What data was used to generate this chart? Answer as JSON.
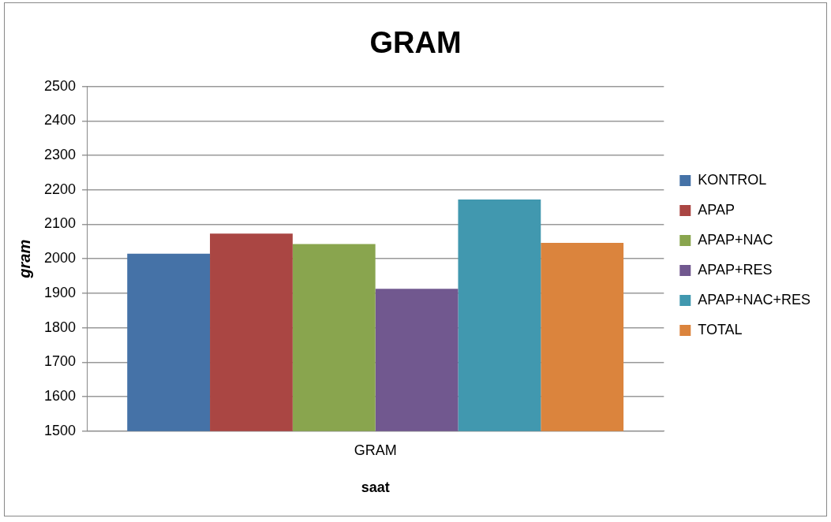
{
  "chart_data": {
    "type": "bar",
    "title": "GRAM",
    "xlabel": "saat",
    "ylabel": "gram",
    "categories": [
      "GRAM"
    ],
    "series": [
      {
        "name": "KONTROL",
        "color": "#4572a7",
        "values": [
          2015
        ]
      },
      {
        "name": "APAP",
        "color": "#aa4643",
        "values": [
          2073
        ]
      },
      {
        "name": "APAP+NAC",
        "color": "#89a54e",
        "values": [
          2043
        ]
      },
      {
        "name": "APAP+RES",
        "color": "#71588f",
        "values": [
          1913
        ]
      },
      {
        "name": "APAP+NAC+RES",
        "color": "#4198af",
        "values": [
          2172
        ]
      },
      {
        "name": "TOTAL",
        "color": "#db843d",
        "values": [
          2046
        ]
      }
    ],
    "ylim": [
      1500,
      2500
    ],
    "yticks": [
      1500,
      1600,
      1700,
      1800,
      1900,
      2000,
      2100,
      2200,
      2300,
      2400,
      2500
    ],
    "grid": "y",
    "legend": "right"
  }
}
